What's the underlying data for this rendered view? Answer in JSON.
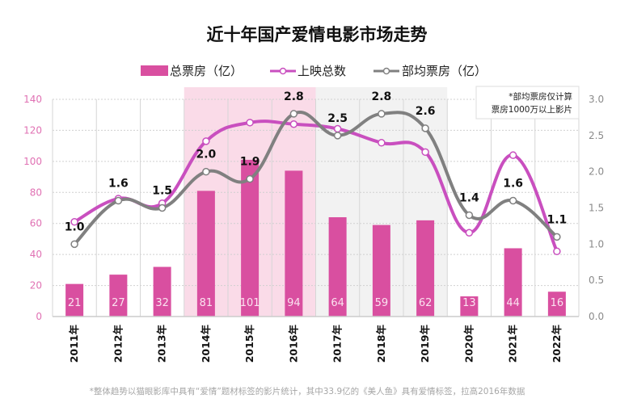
{
  "chart_data": {
    "type": "bar",
    "title": "近十年国产爱情电影市场走势",
    "categories": [
      "2011年",
      "2012年",
      "2013年",
      "2014年",
      "2015年",
      "2016年",
      "2017年",
      "2018年",
      "2019年",
      "2020年",
      "2021年",
      "2022年"
    ],
    "series": [
      {
        "name": "总票房（亿）",
        "type": "bar",
        "axis": "left",
        "color": "#d94fa0",
        "values": [
          21,
          27,
          32,
          81,
          101,
          94,
          64,
          59,
          62,
          13,
          44,
          16
        ],
        "labels": [
          "21",
          "27",
          "32",
          "81",
          "101",
          "94",
          "64",
          "59",
          "62",
          "13",
          "44",
          "16"
        ]
      },
      {
        "name": "上映总数",
        "type": "line",
        "axis": "left",
        "color": "#c94fbf",
        "values": [
          61,
          76,
          73,
          113,
          125,
          124,
          121,
          112,
          106,
          54,
          104,
          42
        ]
      },
      {
        "name": "部均票房（亿）",
        "type": "line",
        "axis": "right",
        "color": "#808080",
        "values": [
          1.0,
          1.6,
          1.5,
          2.0,
          1.9,
          2.8,
          2.5,
          2.8,
          2.6,
          1.4,
          1.6,
          1.1
        ],
        "labels": [
          "1.0",
          "1.6",
          "1.5",
          "2.0",
          "1.9",
          "2.8",
          "2.5",
          "2.8",
          "2.6",
          "1.4",
          "1.6",
          "1.1"
        ]
      }
    ],
    "ylim_left": [
      0,
      140
    ],
    "ylim_right": [
      0,
      3.0
    ],
    "yticks_left": [
      "0",
      "20",
      "40",
      "60",
      "80",
      "100",
      "120",
      "140"
    ],
    "yticks_right": [
      "0.0",
      "0.5",
      "1.0",
      "1.5",
      "2.0",
      "2.5",
      "3.0"
    ],
    "grid": true,
    "legend": "top-center",
    "highlight_regions": [
      {
        "from": "2014年",
        "to": "2016年",
        "color": "#fadbe8"
      },
      {
        "from": "2017年",
        "to": "2019年",
        "color": "#f2f2f2"
      }
    ],
    "annotation": [
      "*部均票房仅计算",
      "票房1000万以上影片"
    ],
    "footnote": "*整体趋势以猫眼影库中具有“爱情”题材标签的影片统计，其中33.9亿的《美人鱼》具有爱情标签，拉高2016年数据"
  }
}
